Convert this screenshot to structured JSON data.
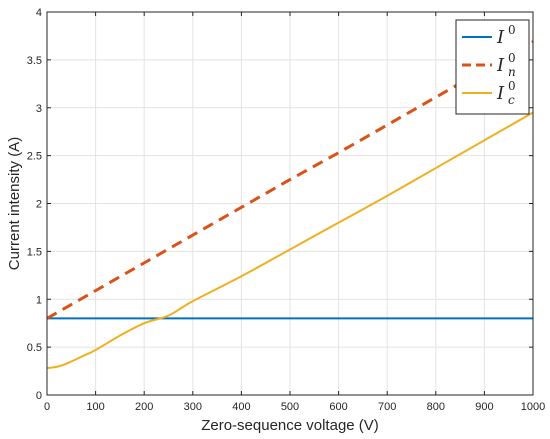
{
  "chart_data": {
    "type": "line",
    "title": "",
    "xlabel": "Zero-sequence voltage (V)",
    "ylabel": "Current intensity (A)",
    "xlim": [
      0,
      1000
    ],
    "ylim": [
      0,
      4
    ],
    "xticks": [
      0,
      100,
      200,
      300,
      400,
      500,
      600,
      700,
      800,
      900,
      1000
    ],
    "yticks": [
      0,
      0.5,
      1,
      1.5,
      2,
      2.5,
      3,
      3.5,
      4
    ],
    "xtick_labels": [
      "0",
      "100",
      "200",
      "300",
      "400",
      "500",
      "600",
      "700",
      "800",
      "900",
      "1000"
    ],
    "ytick_labels": [
      "0",
      "0.5",
      "1",
      "1.5",
      "2",
      "2.5",
      "3",
      "3.5",
      "4"
    ],
    "grid": true,
    "legend_position": "top-right",
    "series": [
      {
        "name": "I^0",
        "legend_base": "I",
        "legend_sup": "0",
        "legend_sub": "",
        "color": "#0072BD",
        "style": "solid",
        "x": [
          0,
          100,
          200,
          300,
          400,
          500,
          600,
          700,
          800,
          900,
          1000
        ],
        "y": [
          0.8,
          0.8,
          0.8,
          0.8,
          0.8,
          0.8,
          0.8,
          0.8,
          0.8,
          0.8,
          0.8
        ]
      },
      {
        "name": "I_n^0",
        "legend_base": "I",
        "legend_sup": "0",
        "legend_sub": "n",
        "color": "#D95319",
        "style": "dashed",
        "x": [
          0,
          100,
          200,
          300,
          400,
          500,
          600,
          700,
          800,
          900,
          1000
        ],
        "y": [
          0.8,
          1.09,
          1.38,
          1.67,
          1.96,
          2.25,
          2.53,
          2.82,
          3.11,
          3.4,
          3.69
        ]
      },
      {
        "name": "I_c^0",
        "legend_base": "I",
        "legend_sup": "0",
        "legend_sub": "c",
        "color": "#EDB120",
        "style": "solid",
        "x": [
          0,
          25,
          50,
          75,
          100,
          150,
          200,
          250,
          300,
          400,
          500,
          600,
          700,
          800,
          900,
          1000
        ],
        "y": [
          0.28,
          0.3,
          0.35,
          0.41,
          0.47,
          0.62,
          0.75,
          0.83,
          0.98,
          1.24,
          1.52,
          1.8,
          2.08,
          2.37,
          2.66,
          2.95
        ]
      }
    ]
  }
}
